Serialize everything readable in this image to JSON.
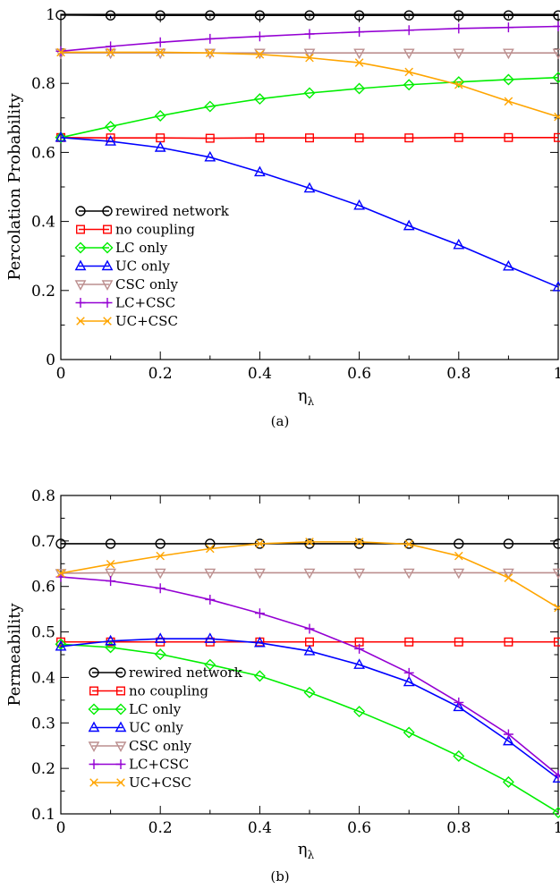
{
  "chart_data": [
    {
      "type": "line",
      "caption": "(a)",
      "xlabel": "η",
      "xlabel_sub": "λ",
      "ylabel": "Percolation Probability",
      "xlim": [
        0,
        1
      ],
      "ylim": [
        0,
        1
      ],
      "x_ticks": [
        "0",
        "0.2",
        "0.4",
        "0.6",
        "0.8",
        "1"
      ],
      "y_ticks": [
        "0",
        "0.2",
        "0.4",
        "0.6",
        "0.8",
        "1"
      ],
      "y_tick_values": [
        0,
        0.2,
        0.4,
        0.6,
        0.8,
        1
      ],
      "x": [
        0,
        0.1,
        0.2,
        0.3,
        0.4,
        0.5,
        0.6,
        0.7,
        0.8,
        0.9,
        1
      ],
      "legend_position": "left",
      "grid": false,
      "series": [
        {
          "name": "rewired network",
          "color": "#000000",
          "marker": "circle",
          "values": [
            0.998,
            0.997,
            0.997,
            0.997,
            0.997,
            0.997,
            0.997,
            0.997,
            0.997,
            0.997,
            0.997
          ]
        },
        {
          "name": "no coupling",
          "color": "#ff0000",
          "marker": "square",
          "values": [
            0.643,
            0.642,
            0.642,
            0.641,
            0.642,
            0.642,
            0.642,
            0.642,
            0.643,
            0.643,
            0.643
          ]
        },
        {
          "name": "LC only",
          "color": "#00ee00",
          "marker": "diamond",
          "values": [
            0.643,
            0.675,
            0.706,
            0.733,
            0.755,
            0.772,
            0.785,
            0.796,
            0.804,
            0.811,
            0.817
          ]
        },
        {
          "name": "UC only",
          "color": "#0000ff",
          "marker": "triangle-up",
          "values": [
            0.643,
            0.632,
            0.614,
            0.586,
            0.543,
            0.496,
            0.446,
            0.387,
            0.332,
            0.27,
            0.21
          ]
        },
        {
          "name": "CSC only",
          "color": "#bc8f8f",
          "marker": "triangle-down",
          "values": [
            0.888,
            0.888,
            0.888,
            0.888,
            0.888,
            0.888,
            0.888,
            0.888,
            0.888,
            0.888,
            0.888
          ]
        },
        {
          "name": "LC+CSC",
          "color": "#9400d3",
          "marker": "plus",
          "values": [
            0.893,
            0.907,
            0.919,
            0.929,
            0.936,
            0.943,
            0.949,
            0.954,
            0.959,
            0.962,
            0.965
          ]
        },
        {
          "name": "UC+CSC",
          "color": "#ffa500",
          "marker": "x",
          "values": [
            0.89,
            0.89,
            0.89,
            0.888,
            0.884,
            0.874,
            0.86,
            0.833,
            0.796,
            0.748,
            0.703
          ]
        }
      ]
    },
    {
      "type": "line",
      "caption": "(b)",
      "xlabel": "η",
      "xlabel_sub": "λ",
      "ylabel": "Permeability",
      "xlim": [
        0,
        1
      ],
      "ylim": [
        0.1,
        0.8
      ],
      "x_ticks": [
        "0",
        "0.2",
        "0.4",
        "0.6",
        "0.8",
        "1"
      ],
      "y_ticks": [
        "0.1",
        "0.2",
        "0.3",
        "0.4",
        "0.5",
        "0.6",
        "0.7",
        "0.8"
      ],
      "y_tick_values": [
        0.1,
        0.2,
        0.3,
        0.4,
        0.5,
        0.6,
        0.7,
        0.8
      ],
      "x": [
        0,
        0.1,
        0.2,
        0.3,
        0.4,
        0.5,
        0.6,
        0.7,
        0.8,
        0.9,
        1
      ],
      "legend_position": "bottom-left",
      "grid": false,
      "series": [
        {
          "name": "rewired network",
          "color": "#000000",
          "marker": "circle",
          "values": [
            0.694,
            0.694,
            0.694,
            0.694,
            0.694,
            0.694,
            0.694,
            0.694,
            0.694,
            0.694,
            0.694
          ]
        },
        {
          "name": "no coupling",
          "color": "#ff0000",
          "marker": "square",
          "values": [
            0.478,
            0.478,
            0.478,
            0.478,
            0.478,
            0.478,
            0.478,
            0.478,
            0.478,
            0.478,
            0.478
          ]
        },
        {
          "name": "LC only",
          "color": "#00ee00",
          "marker": "diamond",
          "values": [
            0.473,
            0.466,
            0.451,
            0.428,
            0.403,
            0.367,
            0.325,
            0.279,
            0.227,
            0.17,
            0.103
          ]
        },
        {
          "name": "UC only",
          "color": "#0000ff",
          "marker": "triangle-up",
          "values": [
            0.468,
            0.48,
            0.485,
            0.485,
            0.476,
            0.458,
            0.428,
            0.39,
            0.335,
            0.26,
            0.178
          ]
        },
        {
          "name": "CSC only",
          "color": "#bc8f8f",
          "marker": "triangle-down",
          "values": [
            0.629,
            0.63,
            0.63,
            0.63,
            0.63,
            0.63,
            0.63,
            0.63,
            0.63,
            0.63,
            0.63
          ]
        },
        {
          "name": "LC+CSC",
          "color": "#9400d3",
          "marker": "plus",
          "values": [
            0.621,
            0.612,
            0.596,
            0.571,
            0.541,
            0.507,
            0.463,
            0.41,
            0.345,
            0.275,
            0.185
          ]
        },
        {
          "name": "UC+CSC",
          "color": "#ffa500",
          "marker": "x",
          "values": [
            0.629,
            0.649,
            0.667,
            0.683,
            0.694,
            0.698,
            0.698,
            0.693,
            0.667,
            0.619,
            0.553
          ]
        }
      ]
    }
  ]
}
